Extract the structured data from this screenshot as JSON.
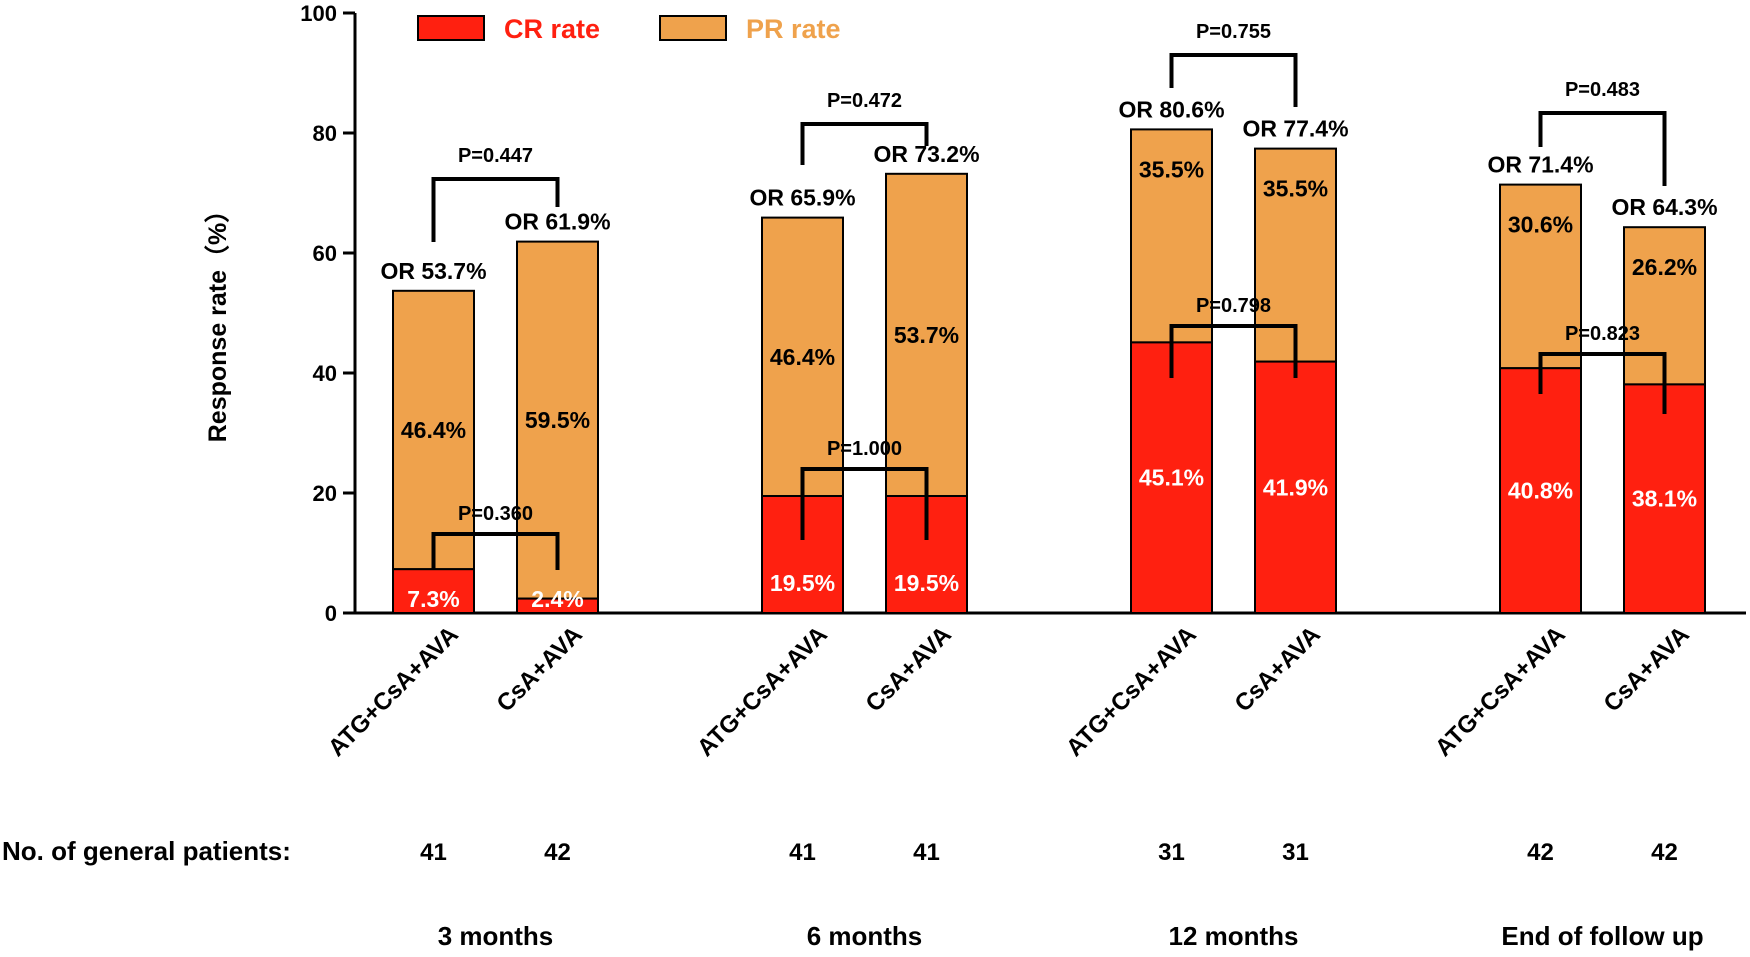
{
  "chart_data": {
    "type": "bar",
    "stacked": true,
    "ylabel": "Response rate（%）",
    "ylim": [
      0,
      100
    ],
    "yticks": [
      0,
      20,
      40,
      60,
      80,
      100
    ],
    "legend": [
      {
        "name": "CR rate",
        "color": "#FF2010",
        "text_color": "#FF2010"
      },
      {
        "name": "PR rate",
        "color": "#EFA24C",
        "text_color": "#EFA24C"
      }
    ],
    "row_label": "No. of general patients:",
    "groups": [
      {
        "label": "3 months",
        "bars": [
          {
            "name": "ATG+CsA+AVA",
            "cr": 7.3,
            "pr": 46.4,
            "or": 53.7,
            "cr_label": "7.3%",
            "pr_label": "46.4%",
            "or_label": "OR 53.7%",
            "n": "41"
          },
          {
            "name": "CsA+AVA",
            "cr": 2.4,
            "pr": 59.5,
            "or": 61.9,
            "cr_label": "2.4%",
            "pr_label": "59.5%",
            "or_label": "OR 61.9%",
            "n": "42"
          }
        ],
        "p_or": "P=0.447",
        "p_cr": "P=0.360"
      },
      {
        "label": "6 months",
        "bars": [
          {
            "name": "ATG+CsA+AVA",
            "cr": 19.5,
            "pr": 46.4,
            "or": 65.9,
            "cr_label": "19.5%",
            "pr_label": "46.4%",
            "or_label": "OR 65.9%",
            "n": "41"
          },
          {
            "name": "CsA+AVA",
            "cr": 19.5,
            "pr": 53.7,
            "or": 73.2,
            "cr_label": "19.5%",
            "pr_label": "53.7%",
            "or_label": "OR 73.2%",
            "n": "41"
          }
        ],
        "p_or": "P=0.472",
        "p_cr": "P=1.000"
      },
      {
        "label": "12 months",
        "bars": [
          {
            "name": "ATG+CsA+AVA",
            "cr": 45.1,
            "pr": 35.5,
            "or": 80.6,
            "cr_label": "45.1%",
            "pr_label": "35.5%",
            "or_label": "OR 80.6%",
            "n": "31"
          },
          {
            "name": "CsA+AVA",
            "cr": 41.9,
            "pr": 35.5,
            "or": 77.4,
            "cr_label": "41.9%",
            "pr_label": "35.5%",
            "or_label": "OR 77.4%",
            "n": "31"
          }
        ],
        "p_or": "P=0.755",
        "p_cr": "P=0.798"
      },
      {
        "label": "End of follow up",
        "bars": [
          {
            "name": "ATG+CsA+AVA",
            "cr": 40.8,
            "pr": 30.6,
            "or": 71.4,
            "cr_label": "40.8%",
            "pr_label": "30.6%",
            "or_label": "OR 71.4%",
            "n": "42"
          },
          {
            "name": "CsA+AVA",
            "cr": 38.1,
            "pr": 26.2,
            "or": 64.3,
            "cr_label": "38.1%",
            "pr_label": "26.2%",
            "or_label": "OR 64.3%",
            "n": "42"
          }
        ],
        "p_or": "P=0.483",
        "p_cr": "P=0.823"
      }
    ]
  }
}
